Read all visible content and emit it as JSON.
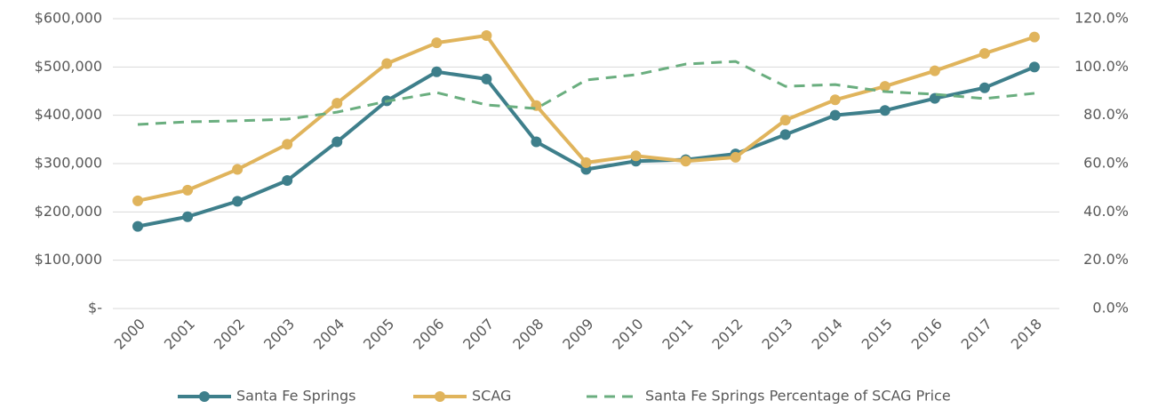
{
  "chart_data": {
    "type": "line",
    "categories": [
      "2000",
      "2001",
      "2002",
      "2003",
      "2004",
      "2005",
      "2006",
      "2007",
      "2008",
      "2009",
      "2010",
      "2011",
      "2012",
      "2013",
      "2014",
      "2015",
      "2016",
      "2017",
      "2018"
    ],
    "series": [
      {
        "name": "Santa Fe Springs",
        "color": "#3e7f8b",
        "markers": true,
        "line_style": "solid",
        "values": [
          170000,
          190000,
          222000,
          265000,
          345000,
          430000,
          490000,
          475000,
          345000,
          288000,
          305000,
          308000,
          320000,
          360000,
          400000,
          410000,
          435000,
          457000,
          500000
        ]
      },
      {
        "name": "SCAG",
        "color": "#e0b45c",
        "markers": true,
        "line_style": "solid",
        "values": [
          223000,
          245000,
          288000,
          340000,
          425000,
          507000,
          550000,
          565000,
          420000,
          302000,
          316000,
          305000,
          313000,
          390000,
          432000,
          460000,
          492000,
          528000,
          562000
        ]
      },
      {
        "name": "Santa Fe Springs Percentage of SCAG Price",
        "color": "#6aae7f",
        "markers": false,
        "line_style": "dashed",
        "axis": "y2",
        "values": [
          76.2,
          77.3,
          77.7,
          78.4,
          81.3,
          85.8,
          89.4,
          84.3,
          82.8,
          94.6,
          96.8,
          101.2,
          102.3,
          92.0,
          92.7,
          89.8,
          88.7,
          86.9,
          89.1
        ]
      }
    ],
    "ylim": [
      0,
      600000
    ],
    "yticks": [
      {
        "value": 0,
        "label": "$-"
      },
      {
        "value": 100000,
        "label": "$100,000"
      },
      {
        "value": 200000,
        "label": "$200,000"
      },
      {
        "value": 300000,
        "label": "$300,000"
      },
      {
        "value": 400000,
        "label": "$400,000"
      },
      {
        "value": 500000,
        "label": "$500,000"
      },
      {
        "value": 600000,
        "label": "$600,000"
      }
    ],
    "y2lim": [
      0,
      120
    ],
    "y2ticks": [
      {
        "value": 0,
        "label": "0.0%"
      },
      {
        "value": 20,
        "label": "20.0%"
      },
      {
        "value": 40,
        "label": "40.0%"
      },
      {
        "value": 60,
        "label": "60.0%"
      },
      {
        "value": 80,
        "label": "80.0%"
      },
      {
        "value": 100,
        "label": "100.0%"
      },
      {
        "value": 120,
        "label": "120.0%"
      }
    ],
    "grid": true,
    "legend": "bottom"
  }
}
